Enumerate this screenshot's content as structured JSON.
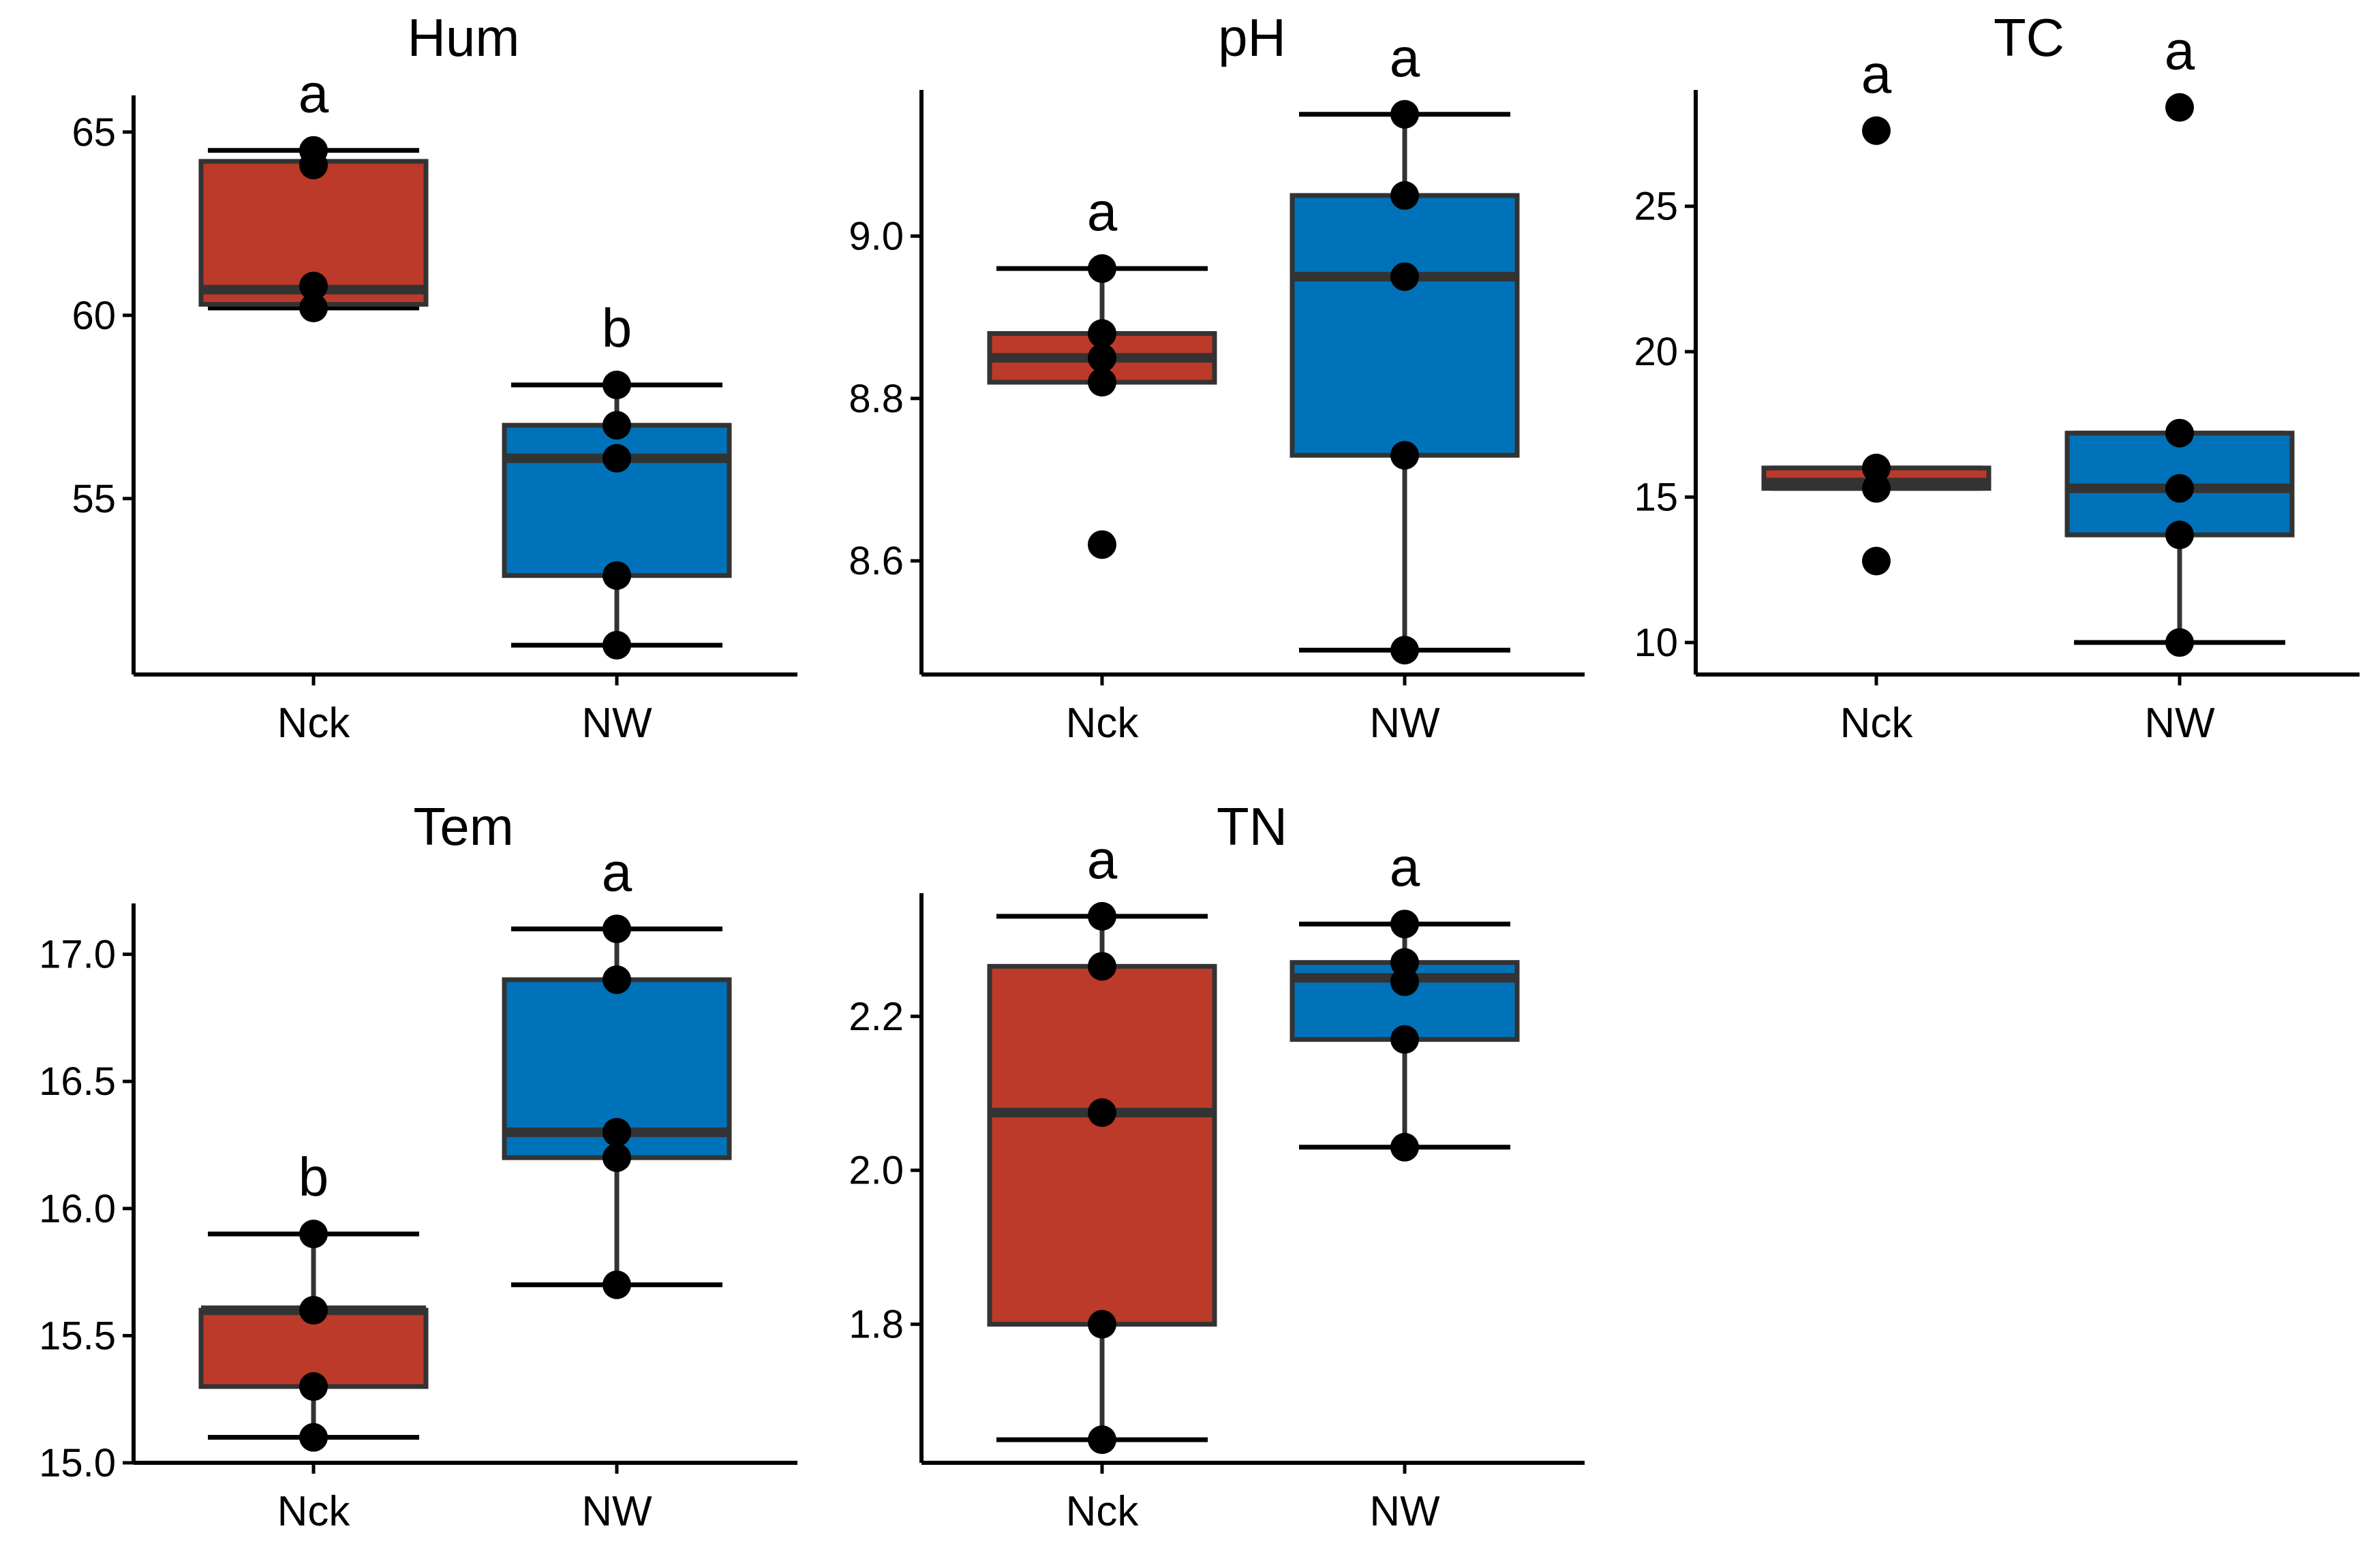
{
  "chart_data": [
    {
      "type": "box",
      "title": "Hum",
      "categories": [
        "Nck",
        "NW"
      ],
      "ylim": [
        50.2,
        66.0
      ],
      "yticks": [
        55,
        60,
        65
      ],
      "ytick_labels": [
        "55",
        "60",
        "65"
      ],
      "series": [
        {
          "name": "Nck",
          "color": "#BC3A29",
          "whisker_low": 60.2,
          "q1": 60.3,
          "median": 60.7,
          "q3": 64.2,
          "whisker_high": 64.5,
          "points": [
            64.5,
            64.1,
            60.8,
            60.2
          ],
          "letter": "a"
        },
        {
          "name": "NW",
          "color": "#0072BA",
          "whisker_low": 51.0,
          "q1": 52.9,
          "median": 56.1,
          "q3": 57.0,
          "whisker_high": 58.1,
          "points": [
            58.1,
            57.0,
            56.1,
            52.9,
            51.0
          ],
          "letter": "b"
        }
      ]
    },
    {
      "type": "box",
      "title": "pH",
      "categories": [
        "Nck",
        "NW"
      ],
      "ylim": [
        8.46,
        9.18
      ],
      "yticks": [
        8.6,
        8.8,
        9.0
      ],
      "ytick_labels": [
        "8.6",
        "8.8",
        "9.0"
      ],
      "series": [
        {
          "name": "Nck",
          "color": "#BC3A29",
          "whisker_low": 8.82,
          "q1": 8.82,
          "median": 8.85,
          "q3": 8.88,
          "whisker_high": 8.96,
          "points": [
            8.96,
            8.88,
            8.85,
            8.82,
            8.62
          ],
          "letter": "a"
        },
        {
          "name": "NW",
          "color": "#0072BA",
          "whisker_low": 8.49,
          "q1": 8.73,
          "median": 8.95,
          "q3": 9.05,
          "whisker_high": 9.15,
          "points": [
            9.15,
            9.05,
            8.95,
            8.73,
            8.49
          ],
          "letter": "a"
        }
      ]
    },
    {
      "type": "box",
      "title": "TC",
      "categories": [
        "Nck",
        "NW"
      ],
      "ylim": [
        8.9,
        29.0
      ],
      "yticks": [
        10,
        15,
        20,
        25
      ],
      "ytick_labels": [
        "10",
        "15",
        "20",
        "25"
      ],
      "series": [
        {
          "name": "Nck",
          "color": "#BC3A29",
          "whisker_low": 15.3,
          "q1": 15.3,
          "median": 15.5,
          "q3": 16.0,
          "whisker_high": 16.0,
          "points": [
            27.6,
            16.0,
            15.3,
            12.8
          ],
          "letter": "a"
        },
        {
          "name": "NW",
          "color": "#0072BA",
          "whisker_low": 10.0,
          "q1": 13.7,
          "median": 15.3,
          "q3": 17.2,
          "whisker_high": 17.2,
          "points": [
            28.4,
            17.2,
            15.3,
            13.7,
            10.0
          ],
          "letter": "a"
        }
      ]
    },
    {
      "type": "box",
      "title": "Tem",
      "categories": [
        "Nck",
        "NW"
      ],
      "ylim": [
        15.0,
        17.2
      ],
      "yticks": [
        15.0,
        15.5,
        16.0,
        16.5,
        17.0
      ],
      "ytick_labels": [
        "15.0",
        "15.5",
        "16.0",
        "16.5",
        "17.0"
      ],
      "series": [
        {
          "name": "Nck",
          "color": "#BC3A29",
          "whisker_low": 15.1,
          "q1": 15.3,
          "median": 15.6,
          "q3": 15.6,
          "whisker_high": 15.9,
          "points": [
            15.9,
            15.6,
            15.3,
            15.1
          ],
          "letter": "b"
        },
        {
          "name": "NW",
          "color": "#0072BA",
          "whisker_low": 15.7,
          "q1": 16.2,
          "median": 16.3,
          "q3": 16.9,
          "whisker_high": 17.1,
          "points": [
            17.1,
            16.9,
            16.3,
            16.2,
            15.7
          ],
          "letter": "a"
        }
      ]
    },
    {
      "type": "box",
      "title": "TN",
      "categories": [
        "Nck",
        "NW"
      ],
      "ylim": [
        1.62,
        2.36
      ],
      "yticks": [
        1.8,
        2.0,
        2.2
      ],
      "ytick_labels": [
        "1.8",
        "2.0",
        "2.2"
      ],
      "series": [
        {
          "name": "Nck",
          "color": "#BC3A29",
          "whisker_low": 1.65,
          "q1": 1.8,
          "median": 2.075,
          "q3": 2.265,
          "whisker_high": 2.33,
          "points": [
            2.33,
            2.265,
            2.075,
            1.8,
            1.65
          ],
          "letter": "a"
        },
        {
          "name": "NW",
          "color": "#0072BA",
          "whisker_low": 2.03,
          "q1": 2.17,
          "median": 2.25,
          "q3": 2.27,
          "whisker_high": 2.32,
          "points": [
            2.32,
            2.27,
            2.245,
            2.17,
            2.03
          ],
          "letter": "a"
        }
      ]
    }
  ]
}
